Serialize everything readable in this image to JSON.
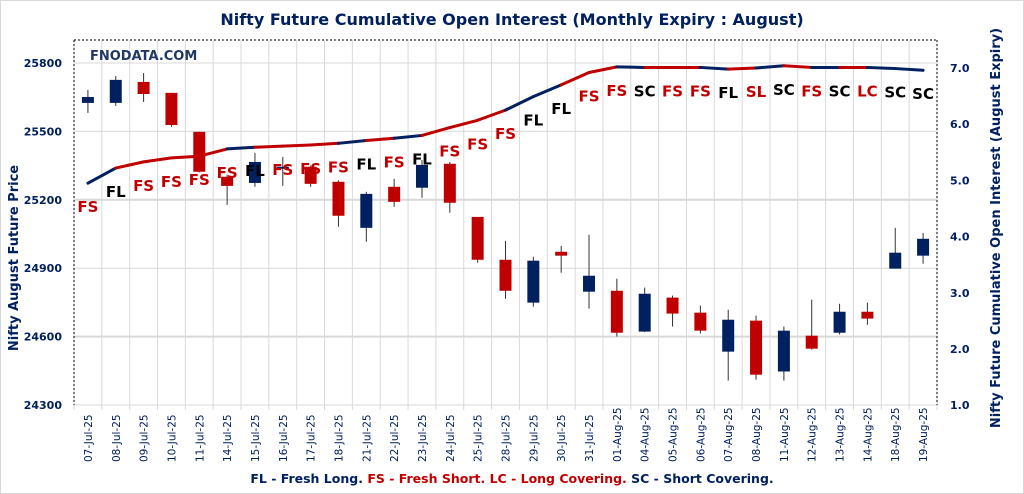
{
  "chart_data": {
    "type": "candlestick+line",
    "title": "Nifty Future Cumulative Open Interest (Monthly Expiry : August)",
    "watermark": "FNODATA.COM",
    "ylabel": "Nifty August Future Price",
    "y2label": "Nifty Future Cumulative Open Interest (August Expiry)",
    "ylim": [
      24300,
      25900
    ],
    "yticks": [
      24300,
      24600,
      24900,
      25200,
      25500,
      25800
    ],
    "y2lim": [
      1.0,
      7.4
    ],
    "y2ticks": [
      "1.0",
      "2.0",
      "3.0",
      "4.0",
      "5.0",
      "6.0",
      "7.0"
    ],
    "grid": true,
    "categories": [
      "07-Jul-25",
      "08-Jul-25",
      "09-Jul-25",
      "10-Jul-25",
      "11-Jul-25",
      "14-Jul-25",
      "15-Jul-25",
      "16-Jul-25",
      "17-Jul-25",
      "18-Jul-25",
      "21-Jul-25",
      "22-Jul-25",
      "23-Jul-25",
      "24-Jul-25",
      "25-Jul-25",
      "28-Jul-25",
      "29-Jul-25",
      "30-Jul-25",
      "31-Jul-25",
      "01-Aug-25",
      "04-Aug-25",
      "05-Aug-25",
      "06-Aug-25",
      "07-Aug-25",
      "08-Aug-25",
      "11-Aug-25",
      "12-Aug-25",
      "13-Aug-25",
      "14-Aug-25",
      "18-Aug-25",
      "19-Aug-25"
    ],
    "price": {
      "open": [
        25625,
        25625,
        25717,
        25669,
        25498,
        25301,
        25274,
        25340,
        25345,
        25279,
        25077,
        25257,
        25253,
        25358,
        25125,
        24937,
        24749,
        24972,
        24797,
        24801,
        24622,
        24771,
        24705,
        24534,
        24670,
        24447,
        24604,
        24617,
        24709,
        24898,
        24955
      ],
      "high": [
        25682,
        25743,
        25756,
        25669,
        25498,
        25310,
        25406,
        25388,
        25350,
        25285,
        25235,
        25292,
        25375,
        25366,
        25125,
        25020,
        24950,
        24998,
        25047,
        24854,
        24815,
        24780,
        24736,
        24718,
        24692,
        24644,
        24762,
        24744,
        24749,
        25077,
        25055
      ],
      "low": [
        25581,
        25612,
        25629,
        25520,
        25320,
        25178,
        25257,
        25261,
        25257,
        25082,
        25016,
        25169,
        25209,
        25143,
        24924,
        24766,
        24731,
        24880,
        24723,
        24600,
        24620,
        24644,
        24613,
        24407,
        24411,
        24407,
        24543,
        24609,
        24652,
        24898,
        24920
      ],
      "close": [
        25651,
        25726,
        25664,
        25528,
        25323,
        25261,
        25366,
        25345,
        25270,
        25130,
        25226,
        25191,
        25353,
        25187,
        24937,
        24801,
        24933,
        24955,
        24867,
        24617,
        24788,
        24701,
        24626,
        24674,
        24433,
        24626,
        24547,
        24709,
        24679,
        24968,
        25029
      ]
    },
    "open_interest": [
      4.95,
      5.22,
      5.33,
      5.4,
      5.43,
      5.56,
      5.59,
      5.61,
      5.63,
      5.66,
      5.71,
      5.75,
      5.8,
      5.94,
      6.07,
      6.25,
      6.49,
      6.7,
      6.92,
      7.02,
      7.01,
      7.01,
      7.01,
      6.98,
      7.0,
      7.04,
      7.01,
      7.01,
      7.01,
      6.99,
      6.96
    ],
    "signals": [
      "FS",
      "FL",
      "FS",
      "FS",
      "FS",
      "FS",
      "FL",
      "FS",
      "FS",
      "FS",
      "FL",
      "FS",
      "FL",
      "FS",
      "FS",
      "FS",
      "FL",
      "FL",
      "FS",
      "FS",
      "SC",
      "FS",
      "FS",
      "FL",
      "SL",
      "SC",
      "FS",
      "SC",
      "LC",
      "SC",
      "SC"
    ],
    "colors": {
      "up": "#002060",
      "down": "#C00000",
      "axis_text": "#002060",
      "label_dark": "#000000",
      "label_red": "#C00000"
    }
  },
  "legend": {
    "fl": "FL - Fresh Long.",
    "fs": "FS - Fresh Short.",
    "lc": "LC - Long Covering.",
    "sc": "SC - Short Covering."
  }
}
